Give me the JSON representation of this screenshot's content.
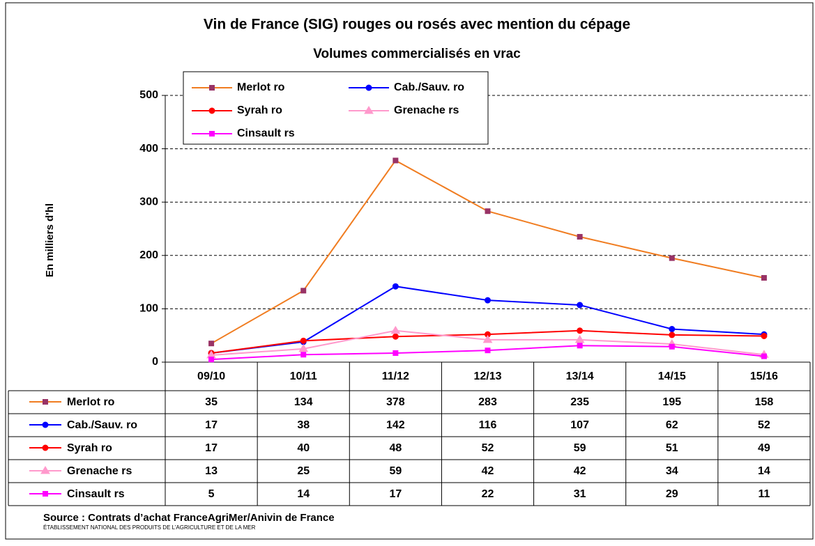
{
  "chart_data": {
    "type": "line",
    "title": "Vin de France (SIG) rouges ou rosés avec mention du cépage",
    "subtitle": "Volumes commercialisés en vrac",
    "y_label": "En milliers d'hl",
    "categories": [
      "09/10",
      "10/11",
      "11/12",
      "12/13",
      "13/14",
      "14/15",
      "15/16"
    ],
    "series": [
      {
        "name": "Merlot ro",
        "color": "#f07c20",
        "marker": "square",
        "marker_color": "#993366",
        "values": [
          35,
          134,
          378,
          283,
          235,
          195,
          158
        ]
      },
      {
        "name": "Cab./Sauv. ro",
        "color": "#0000ff",
        "marker": "circle",
        "marker_color": "#0000ff",
        "values": [
          17,
          38,
          142,
          116,
          107,
          62,
          52
        ]
      },
      {
        "name": "Syrah ro",
        "color": "#ff0000",
        "marker": "circle",
        "marker_color": "#ff0000",
        "values": [
          17,
          40,
          48,
          52,
          59,
          51,
          49
        ]
      },
      {
        "name": "Grenache rs",
        "color": "#ff99cc",
        "marker": "triangle",
        "marker_color": "#ff99cc",
        "values": [
          13,
          25,
          59,
          42,
          42,
          34,
          14
        ]
      },
      {
        "name": "Cinsault rs",
        "color": "#ff00ff",
        "marker": "square",
        "marker_color": "#ff00ff",
        "values": [
          5,
          14,
          17,
          22,
          31,
          29,
          11
        ]
      }
    ],
    "ylim": [
      0,
      500
    ],
    "yticks": [
      0,
      100,
      200,
      300,
      400,
      500
    ],
    "grid": true,
    "source": "Source : Contrats d’achat FranceAgriMer/Anivin de France",
    "source_note": "ÉTABLISSEMENT NATIONAL DES PRODUITS DE L’AGRICULTURE ET DE LA MER"
  }
}
